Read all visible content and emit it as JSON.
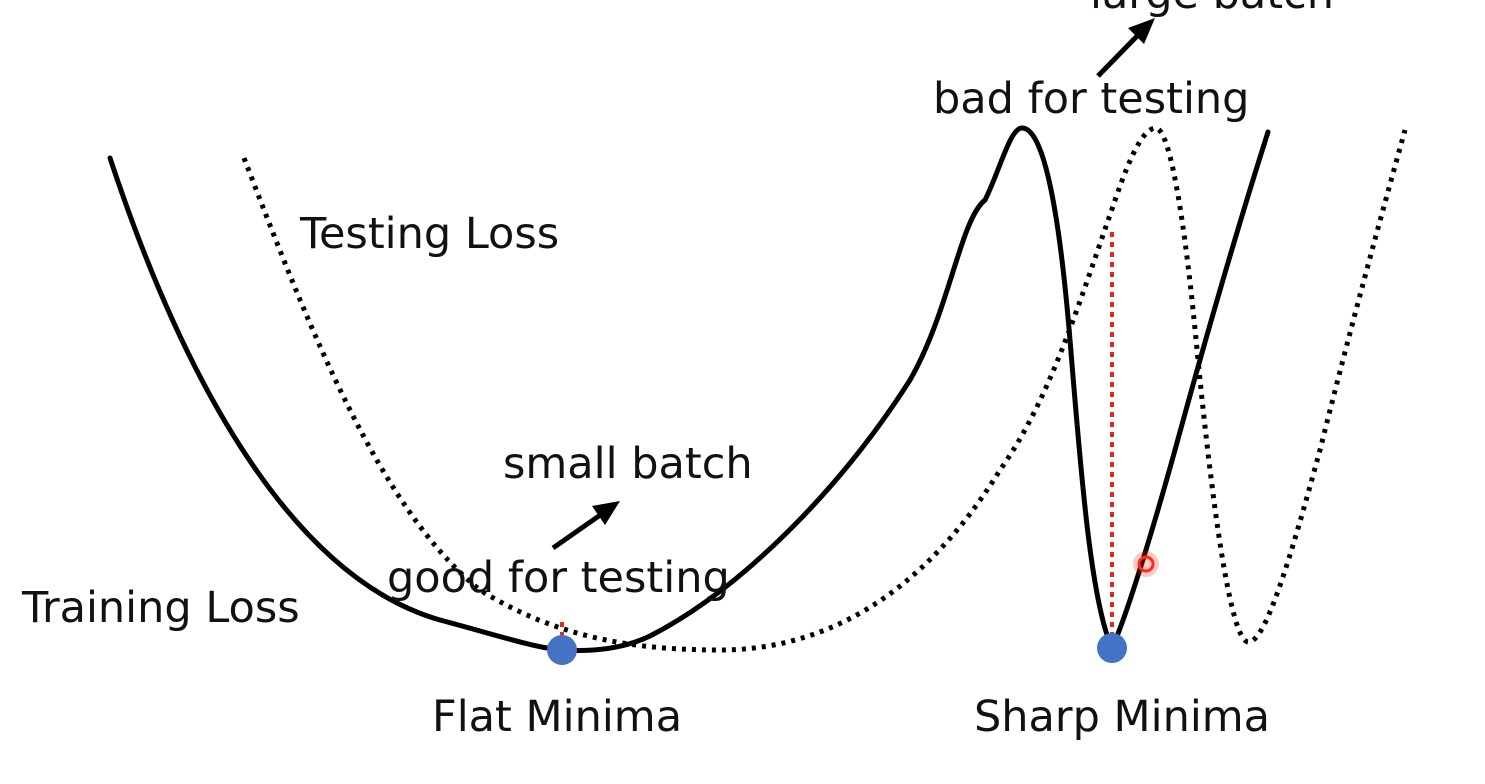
{
  "labels": {
    "top_cut": "large batch",
    "bad_for_testing": "bad for testing",
    "testing_loss": "Testing Loss",
    "small_batch": "small batch",
    "good_for_testing": "good for testing",
    "training_loss": "Training Loss",
    "flat_minima": "Flat Minima",
    "sharp_minima": "Sharp Minima"
  },
  "colors": {
    "curve": "#000000",
    "minimum_dot": "#4472c4",
    "gap_line": "#e8261c",
    "cursor_marker": "#ff2a1a",
    "text": "#111111"
  }
}
